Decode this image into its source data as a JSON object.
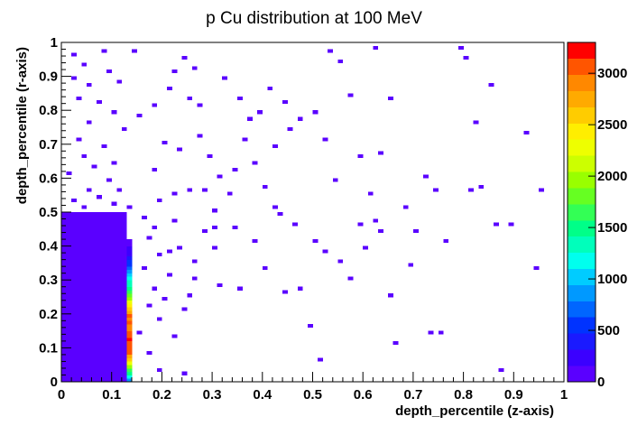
{
  "chart_data": {
    "type": "heatmap",
    "title": "p Cu distribution at 100 MeV",
    "xlabel": "depth_percentile (z-axis)",
    "ylabel": "depth_percentile (r-axis)",
    "xlim": [
      0,
      1
    ],
    "ylim": [
      0,
      1
    ],
    "zlim": [
      0,
      3300
    ],
    "bins": {
      "x": 100,
      "y": 100
    },
    "x_ticks": [
      "0",
      "0.1",
      "0.2",
      "0.3",
      "0.4",
      "0.5",
      "0.6",
      "0.7",
      "0.8",
      "0.9",
      "1"
    ],
    "y_ticks": [
      "0",
      "0.1",
      "0.2",
      "0.3",
      "0.4",
      "0.5",
      "0.6",
      "0.7",
      "0.8",
      "0.9",
      "1"
    ],
    "z_ticks": [
      "0",
      "500",
      "1000",
      "1500",
      "2000",
      "2500",
      "3000"
    ],
    "z_tick_values": [
      0,
      500,
      1000,
      1500,
      2000,
      2500,
      3000
    ],
    "palette": [
      "#5a00ff",
      "#3b00ff",
      "#1a1aff",
      "#0033ff",
      "#0066ff",
      "#0099ff",
      "#00ccff",
      "#00ffee",
      "#00ffbb",
      "#00ff88",
      "#33ff55",
      "#66ff22",
      "#99ff00",
      "#ccff00",
      "#eeff00",
      "#ffee00",
      "#ffcc00",
      "#ffaa00",
      "#ff8800",
      "#ff5500",
      "#ff0000"
    ],
    "regions": [
      {
        "name": "dense-core",
        "x_range": [
          0,
          0.13
        ],
        "y_range": [
          0,
          0.5
        ],
        "value": 1
      },
      {
        "name": "bragg-column",
        "x_range": [
          0.13,
          0.14
        ],
        "y_range": [
          0,
          0.42
        ],
        "profile": [
          {
            "y": 0.005,
            "value": 800
          },
          {
            "y": 0.015,
            "value": 1100
          },
          {
            "y": 0.025,
            "value": 1500
          },
          {
            "y": 0.035,
            "value": 1700
          },
          {
            "y": 0.045,
            "value": 1900
          },
          {
            "y": 0.055,
            "value": 2200
          },
          {
            "y": 0.065,
            "value": 2600
          },
          {
            "y": 0.075,
            "value": 2800
          },
          {
            "y": 0.085,
            "value": 3000
          },
          {
            "y": 0.095,
            "value": 3000
          },
          {
            "y": 0.105,
            "value": 3100
          },
          {
            "y": 0.115,
            "value": 3100
          },
          {
            "y": 0.125,
            "value": 3200
          },
          {
            "y": 0.135,
            "value": 3100
          },
          {
            "y": 0.145,
            "value": 3000
          },
          {
            "y": 0.155,
            "value": 2900
          },
          {
            "y": 0.165,
            "value": 2900
          },
          {
            "y": 0.175,
            "value": 3000
          },
          {
            "y": 0.185,
            "value": 2900
          },
          {
            "y": 0.195,
            "value": 3000
          },
          {
            "y": 0.205,
            "value": 2800
          },
          {
            "y": 0.215,
            "value": 2600
          },
          {
            "y": 0.225,
            "value": 2400
          },
          {
            "y": 0.235,
            "value": 2200
          },
          {
            "y": 0.245,
            "value": 2000
          },
          {
            "y": 0.255,
            "value": 1800
          },
          {
            "y": 0.265,
            "value": 1700
          },
          {
            "y": 0.275,
            "value": 1500
          },
          {
            "y": 0.285,
            "value": 1400
          },
          {
            "y": 0.295,
            "value": 1300
          },
          {
            "y": 0.305,
            "value": 1200
          },
          {
            "y": 0.315,
            "value": 1000
          },
          {
            "y": 0.325,
            "value": 900
          },
          {
            "y": 0.335,
            "value": 700
          },
          {
            "y": 0.345,
            "value": 600
          },
          {
            "y": 0.355,
            "value": 500
          },
          {
            "y": 0.365,
            "value": 400
          },
          {
            "y": 0.375,
            "value": 300
          },
          {
            "y": 0.385,
            "value": 250
          },
          {
            "y": 0.395,
            "value": 200
          },
          {
            "y": 0.405,
            "value": 150
          },
          {
            "y": 0.415,
            "value": 100
          }
        ]
      }
    ],
    "sparse_points": [
      [
        0.025,
        0.96
      ],
      [
        0.085,
        0.97
      ],
      [
        0.045,
        0.93
      ],
      [
        0.095,
        0.91
      ],
      [
        0.025,
        0.89
      ],
      [
        0.055,
        0.87
      ],
      [
        0.115,
        0.88
      ],
      [
        0.035,
        0.83
      ],
      [
        0.075,
        0.82
      ],
      [
        0.105,
        0.79
      ],
      [
        0.055,
        0.76
      ],
      [
        0.125,
        0.74
      ],
      [
        0.035,
        0.71
      ],
      [
        0.085,
        0.69
      ],
      [
        0.045,
        0.66
      ],
      [
        0.105,
        0.64
      ],
      [
        0.065,
        0.63
      ],
      [
        0.015,
        0.61
      ],
      [
        0.095,
        0.59
      ],
      [
        0.115,
        0.57
      ],
      [
        0.055,
        0.56
      ],
      [
        0.075,
        0.54
      ],
      [
        0.025,
        0.53
      ],
      [
        0.105,
        0.52
      ],
      [
        0.045,
        0.51
      ],
      [
        0.135,
        0.51
      ],
      [
        0.145,
        0.97
      ],
      [
        0.185,
        0.81
      ],
      [
        0.155,
        0.78
      ],
      [
        0.215,
        0.86
      ],
      [
        0.225,
        0.91
      ],
      [
        0.245,
        0.95
      ],
      [
        0.265,
        0.92
      ],
      [
        0.255,
        0.83
      ],
      [
        0.205,
        0.7
      ],
      [
        0.235,
        0.68
      ],
      [
        0.275,
        0.72
      ],
      [
        0.185,
        0.62
      ],
      [
        0.295,
        0.66
      ],
      [
        0.315,
        0.6
      ],
      [
        0.255,
        0.57
      ],
      [
        0.195,
        0.53
      ],
      [
        0.165,
        0.48
      ],
      [
        0.225,
        0.47
      ],
      [
        0.305,
        0.5
      ],
      [
        0.285,
        0.44
      ],
      [
        0.175,
        0.42
      ],
      [
        0.235,
        0.39
      ],
      [
        0.195,
        0.37
      ],
      [
        0.265,
        0.35
      ],
      [
        0.165,
        0.33
      ],
      [
        0.215,
        0.31
      ],
      [
        0.315,
        0.29
      ],
      [
        0.185,
        0.27
      ],
      [
        0.255,
        0.25
      ],
      [
        0.175,
        0.22
      ],
      [
        0.195,
        0.18
      ],
      [
        0.155,
        0.14
      ],
      [
        0.175,
        0.08
      ],
      [
        0.195,
        0.03
      ],
      [
        0.245,
        0.21
      ],
      [
        0.205,
        0.24
      ],
      [
        0.305,
        0.39
      ],
      [
        0.335,
        0.55
      ],
      [
        0.345,
        0.62
      ],
      [
        0.325,
        0.89
      ],
      [
        0.355,
        0.83
      ],
      [
        0.375,
        0.77
      ],
      [
        0.365,
        0.71
      ],
      [
        0.385,
        0.64
      ],
      [
        0.405,
        0.58
      ],
      [
        0.425,
        0.69
      ],
      [
        0.395,
        0.79
      ],
      [
        0.415,
        0.86
      ],
      [
        0.445,
        0.82
      ],
      [
        0.475,
        0.77
      ],
      [
        0.455,
        0.74
      ],
      [
        0.435,
        0.49
      ],
      [
        0.465,
        0.46
      ],
      [
        0.505,
        0.41
      ],
      [
        0.525,
        0.38
      ],
      [
        0.545,
        0.59
      ],
      [
        0.525,
        0.71
      ],
      [
        0.505,
        0.79
      ],
      [
        0.535,
        0.97
      ],
      [
        0.555,
        0.94
      ],
      [
        0.575,
        0.84
      ],
      [
        0.595,
        0.66
      ],
      [
        0.615,
        0.55
      ],
      [
        0.595,
        0.46
      ],
      [
        0.635,
        0.44
      ],
      [
        0.655,
        0.25
      ],
      [
        0.665,
        0.11
      ],
      [
        0.695,
        0.34
      ],
      [
        0.735,
        0.14
      ],
      [
        0.755,
        0.14
      ],
      [
        0.765,
        0.41
      ],
      [
        0.725,
        0.6
      ],
      [
        0.745,
        0.56
      ],
      [
        0.815,
        0.57
      ],
      [
        0.835,
        0.58
      ],
      [
        0.865,
        0.46
      ],
      [
        0.875,
        0.03
      ],
      [
        0.895,
        0.46
      ],
      [
        0.955,
        0.57
      ],
      [
        0.945,
        0.33
      ],
      [
        0.925,
        0.73
      ],
      [
        0.825,
        0.76
      ],
      [
        0.855,
        0.87
      ],
      [
        0.795,
        0.98
      ],
      [
        0.805,
        0.95
      ],
      [
        0.625,
        0.98
      ],
      [
        0.515,
        0.06
      ],
      [
        0.495,
        0.16
      ],
      [
        0.475,
        0.27
      ],
      [
        0.445,
        0.26
      ],
      [
        0.405,
        0.33
      ],
      [
        0.385,
        0.41
      ],
      [
        0.345,
        0.45
      ],
      [
        0.425,
        0.51
      ],
      [
        0.555,
        0.35
      ],
      [
        0.575,
        0.3
      ],
      [
        0.605,
        0.39
      ],
      [
        0.625,
        0.47
      ],
      [
        0.635,
        0.67
      ],
      [
        0.685,
        0.51
      ],
      [
        0.705,
        0.44
      ],
      [
        0.655,
        0.83
      ],
      [
        0.355,
        0.27
      ],
      [
        0.285,
        0.56
      ],
      [
        0.225,
        0.13
      ],
      [
        0.245,
        0.02
      ],
      [
        0.275,
        0.81
      ],
      [
        0.185,
        0.45
      ],
      [
        0.225,
        0.55
      ],
      [
        0.305,
        0.45
      ],
      [
        0.265,
        0.3
      ],
      [
        0.215,
        0.38
      ]
    ]
  }
}
